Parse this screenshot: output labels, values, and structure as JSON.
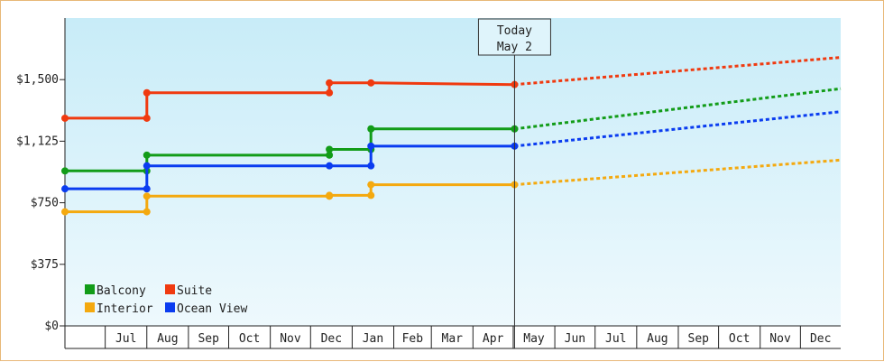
{
  "chart_data": {
    "type": "line",
    "step": true,
    "title": "",
    "xlabel": "",
    "ylabel": "",
    "ylim": [
      0,
      1875
    ],
    "y_ticks": [
      0,
      375,
      750,
      1125,
      1500
    ],
    "y_tick_labels": [
      "$0",
      "$375",
      "$750",
      "$1,125",
      "$1,500"
    ],
    "x_tick_labels": [
      "Jul",
      "Aug",
      "Sep",
      "Oct",
      "Nov",
      "Dec",
      "Jan",
      "Feb",
      "Mar",
      "Apr",
      "May",
      "Jun",
      "Jul",
      "Aug",
      "Sep",
      "Oct",
      "Nov",
      "Dec"
    ],
    "x_range": [
      "2022-06-01",
      "2023-12-31"
    ],
    "today": {
      "line1": "Today",
      "line2": "May 2",
      "date": "2023-05-02"
    },
    "legend_position": "bottom-left",
    "grid": false,
    "background_gradient": [
      "#c8ecf8",
      "#eef9fd"
    ],
    "series": [
      {
        "name": "Balcony",
        "color": "#129c18",
        "points": [
          [
            "2022-06-01",
            944
          ],
          [
            "2022-08-01",
            944
          ],
          [
            "2022-08-01",
            1040
          ],
          [
            "2022-12-15",
            1040
          ],
          [
            "2022-12-15",
            1075
          ],
          [
            "2023-01-15",
            1075
          ],
          [
            "2023-01-15",
            1200
          ],
          [
            "2023-05-02",
            1200
          ]
        ],
        "forecast": [
          [
            "2023-05-02",
            1200
          ],
          [
            "2023-12-31",
            1445
          ]
        ]
      },
      {
        "name": "Interior",
        "color": "#f4a90f",
        "points": [
          [
            "2022-06-01",
            695
          ],
          [
            "2022-08-01",
            695
          ],
          [
            "2022-08-01",
            790
          ],
          [
            "2022-12-15",
            790
          ],
          [
            "2022-12-15",
            795
          ],
          [
            "2023-01-15",
            795
          ],
          [
            "2023-01-15",
            860
          ],
          [
            "2023-05-02",
            860
          ]
        ],
        "forecast": [
          [
            "2023-05-02",
            860
          ],
          [
            "2023-12-31",
            1010
          ]
        ]
      },
      {
        "name": "Suite",
        "color": "#f03a10",
        "points": [
          [
            "2022-06-01",
            1265
          ],
          [
            "2022-08-01",
            1265
          ],
          [
            "2022-08-01",
            1420
          ],
          [
            "2022-12-15",
            1420
          ],
          [
            "2022-12-15",
            1480
          ],
          [
            "2023-01-15",
            1480
          ],
          [
            "2023-05-02",
            1470
          ]
        ],
        "forecast": [
          [
            "2023-05-02",
            1470
          ],
          [
            "2023-12-31",
            1635
          ]
        ]
      },
      {
        "name": "Ocean View",
        "color": "#0a3cf0",
        "points": [
          [
            "2022-06-01",
            835
          ],
          [
            "2022-08-01",
            835
          ],
          [
            "2022-08-01",
            975
          ],
          [
            "2022-12-15",
            975
          ],
          [
            "2023-01-15",
            975
          ],
          [
            "2023-01-15",
            1095
          ],
          [
            "2023-05-02",
            1095
          ]
        ],
        "forecast": [
          [
            "2023-05-02",
            1095
          ],
          [
            "2023-12-31",
            1305
          ]
        ]
      }
    ],
    "legend_order": [
      "Balcony",
      "Suite",
      "Interior",
      "Ocean View"
    ]
  }
}
